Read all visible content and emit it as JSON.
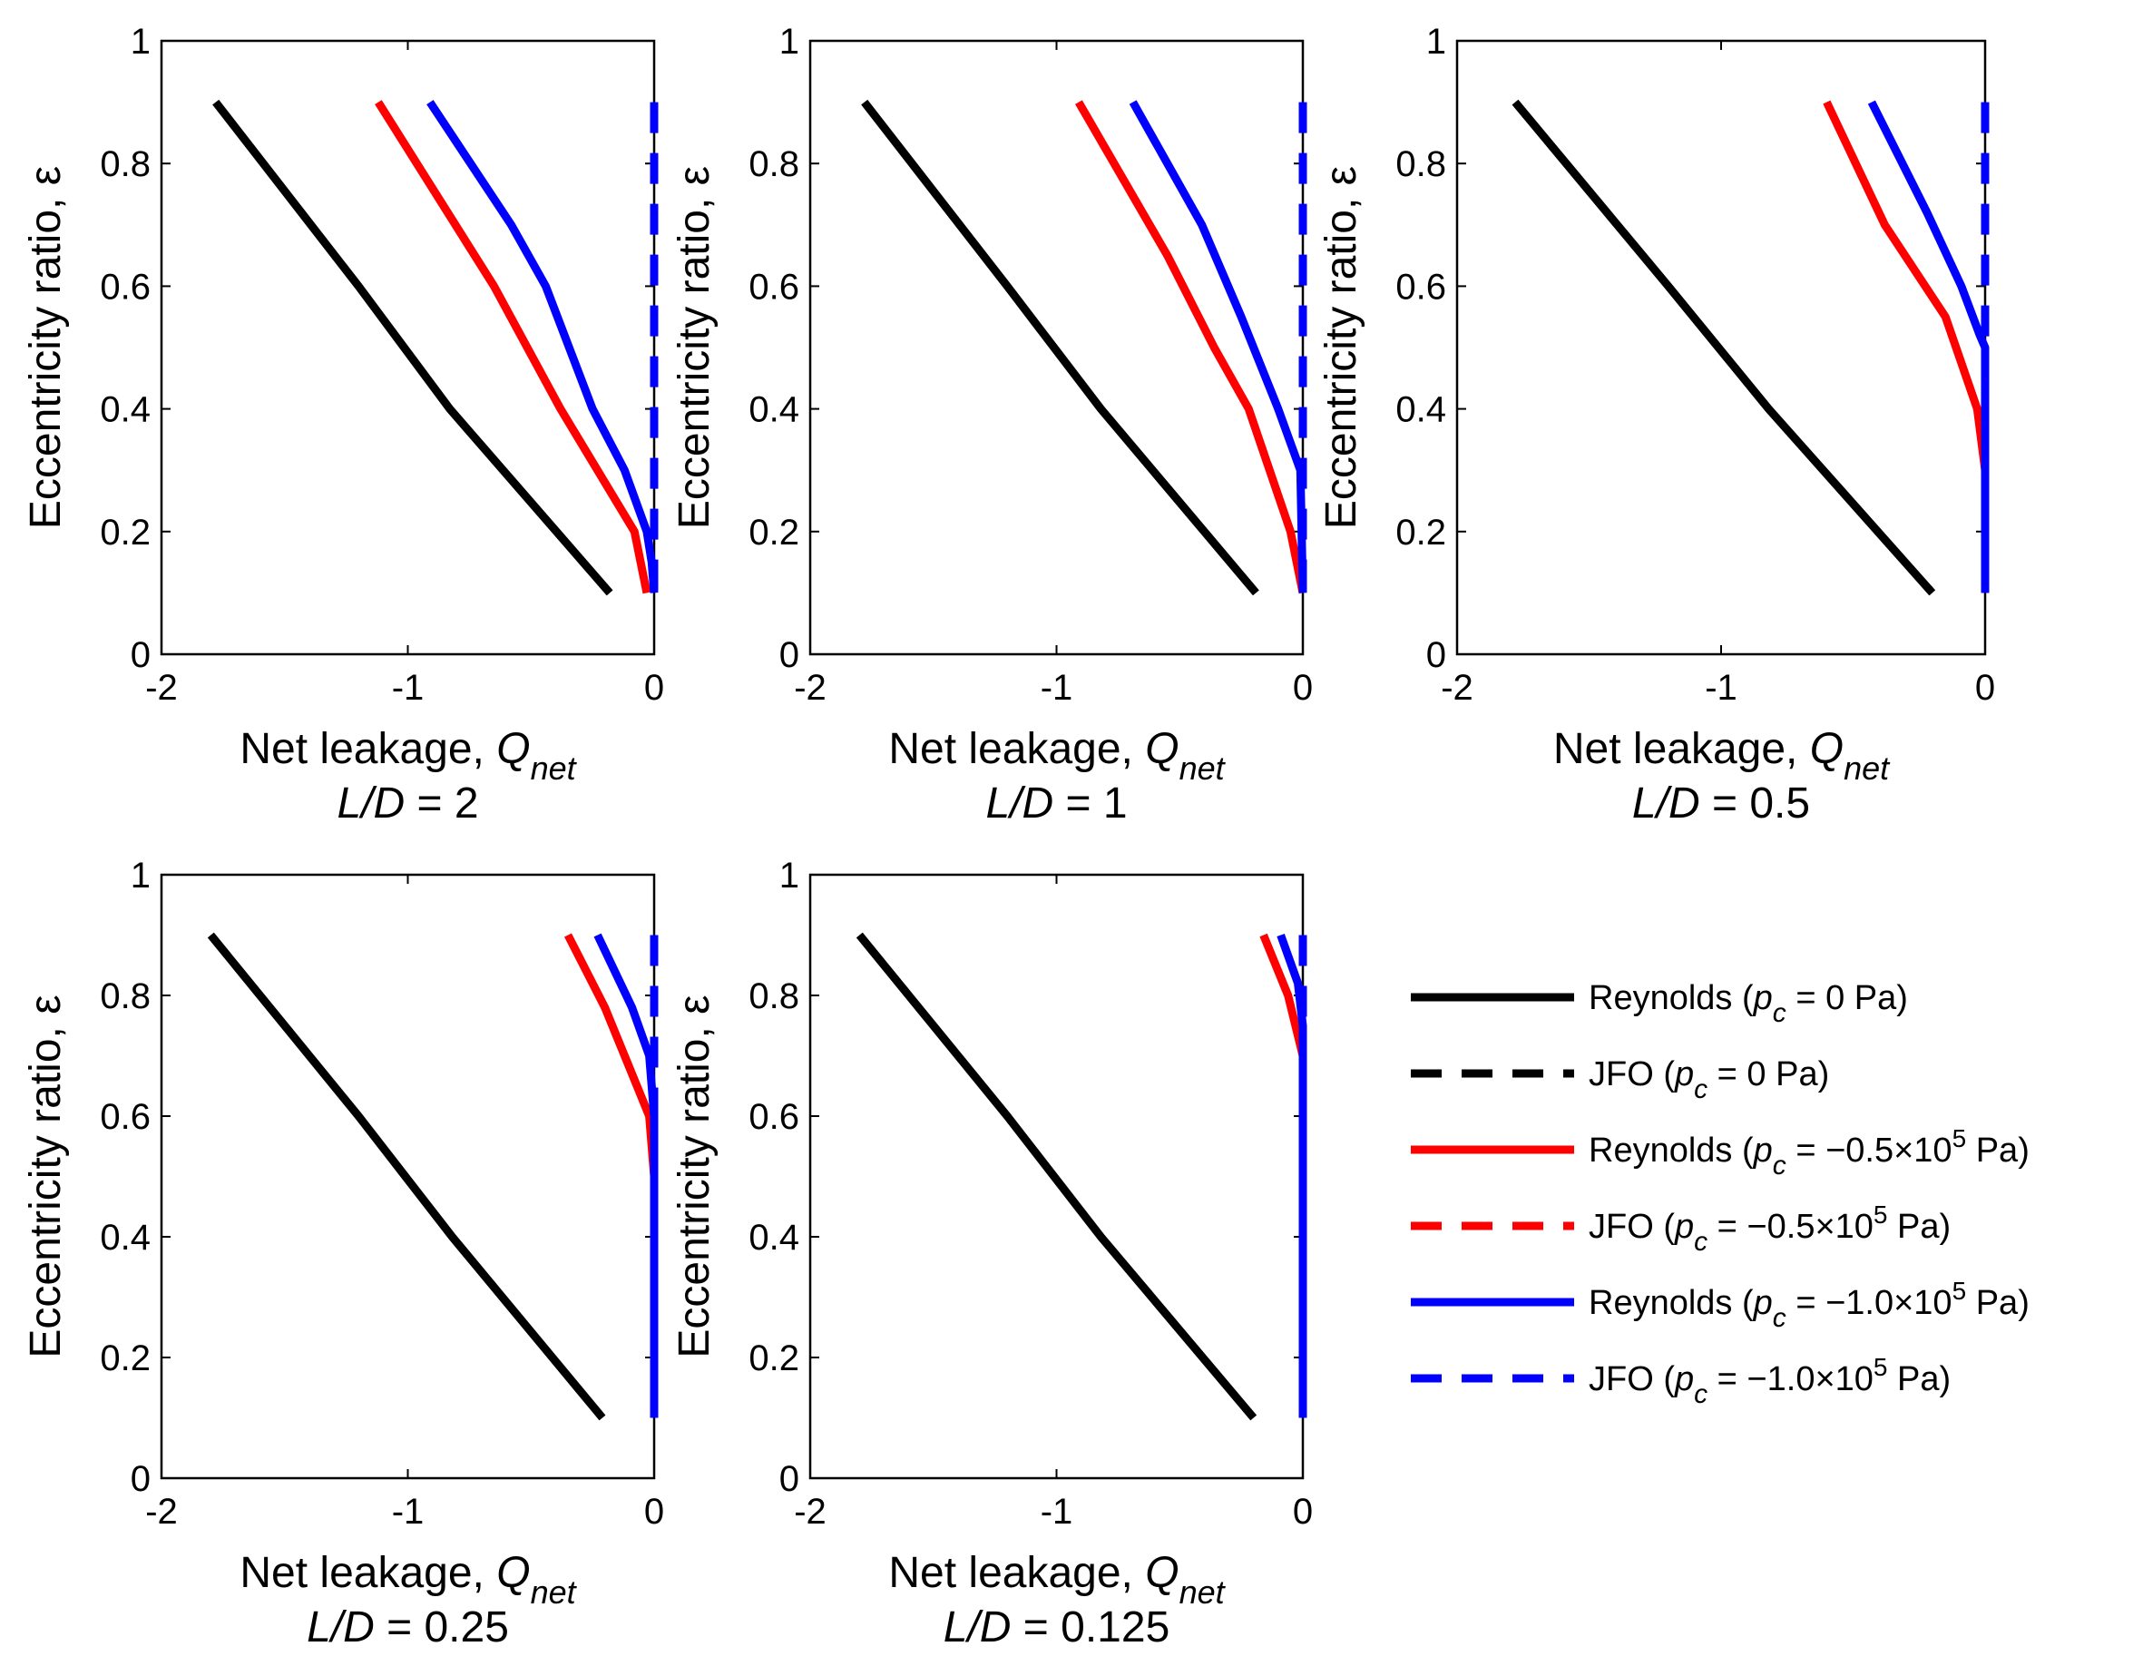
{
  "chart_data": [
    {
      "type": "line",
      "title_var": "L/D",
      "title_value": "2",
      "xlabel": "Net leakage,",
      "xlabel_var": "Q",
      "xlabel_sub": "net",
      "ylabel": "Eccentricity ratio, ε",
      "xlim": [
        -2,
        0
      ],
      "ylim": [
        0,
        1
      ],
      "xticks": [
        "-2",
        "-1",
        "0"
      ],
      "yticks": [
        "0",
        "0.2",
        "0.4",
        "0.6",
        "0.8",
        "1"
      ],
      "series": [
        {
          "name": "Reynolds (p_c = 0 Pa)",
          "color": "#000000",
          "style": "solid",
          "points": [
            [
              -1.78,
              0.9
            ],
            [
              -1.2,
              0.6
            ],
            [
              -0.83,
              0.4
            ],
            [
              -0.18,
              0.1
            ]
          ]
        },
        {
          "name": "Reynolds (p_c = −0.5×10^5 Pa)",
          "color": "#ff0000",
          "style": "solid",
          "points": [
            [
              -1.12,
              0.9
            ],
            [
              -0.65,
              0.6
            ],
            [
              -0.38,
              0.4
            ],
            [
              -0.08,
              0.2
            ],
            [
              -0.03,
              0.1
            ]
          ]
        },
        {
          "name": "Reynolds (p_c = −1.0×10^5 Pa)",
          "color": "#0000ff",
          "style": "solid",
          "points": [
            [
              -0.91,
              0.9
            ],
            [
              -0.58,
              0.7
            ],
            [
              -0.44,
              0.6
            ],
            [
              -0.25,
              0.4
            ],
            [
              -0.12,
              0.3
            ],
            [
              -0.03,
              0.2
            ],
            [
              -0.01,
              0.15
            ],
            [
              0,
              0.1
            ]
          ]
        },
        {
          "name": "JFO (p_c = −1.0×10^5 Pa)",
          "color": "#0000ff",
          "style": "dashed",
          "points": [
            [
              0,
              0.9
            ],
            [
              0,
              0.1
            ]
          ]
        }
      ]
    },
    {
      "type": "line",
      "title_var": "L/D",
      "title_value": "1",
      "xlabel": "Net leakage,",
      "xlabel_var": "Q",
      "xlabel_sub": "net",
      "ylabel": "Eccentricity ratio, ε",
      "xlim": [
        -2,
        0
      ],
      "ylim": [
        0,
        1
      ],
      "xticks": [
        "-2",
        "-1",
        "0"
      ],
      "yticks": [
        "0",
        "0.2",
        "0.4",
        "0.6",
        "0.8",
        "1"
      ],
      "series": [
        {
          "name": "Reynolds (p_c = 0 Pa)",
          "color": "#000000",
          "style": "solid",
          "points": [
            [
              -1.78,
              0.9
            ],
            [
              -1.2,
              0.6
            ],
            [
              -0.82,
              0.4
            ],
            [
              -0.19,
              0.1
            ]
          ]
        },
        {
          "name": "Reynolds (p_c = −0.5×10^5 Pa)",
          "color": "#ff0000",
          "style": "solid",
          "points": [
            [
              -0.91,
              0.9
            ],
            [
              -0.55,
              0.65
            ],
            [
              -0.36,
              0.5
            ],
            [
              -0.22,
              0.4
            ],
            [
              -0.05,
              0.2
            ],
            [
              0,
              0.1
            ]
          ]
        },
        {
          "name": "Reynolds (p_c = −1.0×10^5 Pa)",
          "color": "#0000ff",
          "style": "solid",
          "points": [
            [
              -0.69,
              0.9
            ],
            [
              -0.41,
              0.7
            ],
            [
              -0.25,
              0.55
            ],
            [
              -0.1,
              0.4
            ],
            [
              -0.01,
              0.3
            ],
            [
              0,
              0.1
            ]
          ]
        },
        {
          "name": "JFO (p_c = −1.0×10^5 Pa)",
          "color": "#0000ff",
          "style": "dashed",
          "points": [
            [
              0,
              0.9
            ],
            [
              0,
              0.1
            ]
          ]
        }
      ]
    },
    {
      "type": "line",
      "title_var": "L/D",
      "title_value": "0.5",
      "xlabel": "Net leakage,",
      "xlabel_var": "Q",
      "xlabel_sub": "net",
      "ylabel": "Eccentricity ratio, ε",
      "xlim": [
        -2,
        0
      ],
      "ylim": [
        0,
        1
      ],
      "xticks": [
        "-2",
        "-1",
        "0"
      ],
      "yticks": [
        "0",
        "0.2",
        "0.4",
        "0.6",
        "0.8",
        "1"
      ],
      "series": [
        {
          "name": "Reynolds (p_c = 0 Pa)",
          "color": "#000000",
          "style": "solid",
          "points": [
            [
              -1.78,
              0.9
            ],
            [
              -1.2,
              0.6
            ],
            [
              -0.82,
              0.4
            ],
            [
              -0.2,
              0.1
            ]
          ]
        },
        {
          "name": "Reynolds (p_c = −0.5×10^5 Pa)",
          "color": "#ff0000",
          "style": "solid",
          "points": [
            [
              -0.6,
              0.9
            ],
            [
              -0.38,
              0.7
            ],
            [
              -0.15,
              0.55
            ],
            [
              -0.03,
              0.4
            ],
            [
              0,
              0.3
            ],
            [
              0,
              0.1
            ]
          ]
        },
        {
          "name": "Reynolds (p_c = −1.0×10^5 Pa)",
          "color": "#0000ff",
          "style": "solid",
          "points": [
            [
              -0.43,
              0.9
            ],
            [
              -0.22,
              0.72
            ],
            [
              -0.09,
              0.6
            ],
            [
              -0.02,
              0.52
            ],
            [
              0,
              0.5
            ],
            [
              0,
              0.1
            ]
          ]
        },
        {
          "name": "JFO (p_c = −1.0×10^5 Pa)",
          "color": "#0000ff",
          "style": "dashed",
          "points": [
            [
              0,
              0.9
            ],
            [
              0,
              0.1
            ]
          ]
        }
      ]
    },
    {
      "type": "line",
      "title_var": "L/D",
      "title_value": "0.25",
      "xlabel": "Net leakage,",
      "xlabel_var": "Q",
      "xlabel_sub": "net",
      "ylabel": "Eccentricity ratio, ε",
      "xlim": [
        -2,
        0
      ],
      "ylim": [
        0,
        1
      ],
      "xticks": [
        "-2",
        "-1",
        "0"
      ],
      "yticks": [
        "0",
        "0.2",
        "0.4",
        "0.6",
        "0.8",
        "1"
      ],
      "series": [
        {
          "name": "Reynolds (p_c = 0 Pa)",
          "color": "#000000",
          "style": "solid",
          "points": [
            [
              -1.8,
              0.9
            ],
            [
              -1.2,
              0.6
            ],
            [
              -0.82,
              0.4
            ],
            [
              -0.21,
              0.1
            ]
          ]
        },
        {
          "name": "Reynolds (p_c = −0.5×10^5 Pa)",
          "color": "#ff0000",
          "style": "solid",
          "points": [
            [
              -0.35,
              0.9
            ],
            [
              -0.2,
              0.78
            ],
            [
              -0.08,
              0.66
            ],
            [
              -0.02,
              0.6
            ],
            [
              0,
              0.5
            ],
            [
              0,
              0.1
            ]
          ]
        },
        {
          "name": "Reynolds (p_c = −1.0×10^5 Pa)",
          "color": "#0000ff",
          "style": "solid",
          "points": [
            [
              -0.23,
              0.9
            ],
            [
              -0.09,
              0.78
            ],
            [
              -0.02,
              0.7
            ],
            [
              0,
              0.6
            ],
            [
              0,
              0.1
            ]
          ]
        },
        {
          "name": "JFO (p_c = −1.0×10^5 Pa)",
          "color": "#0000ff",
          "style": "dashed",
          "points": [
            [
              0,
              0.9
            ],
            [
              0,
              0.1
            ]
          ]
        }
      ]
    },
    {
      "type": "line",
      "title_var": "L/D",
      "title_value": "0.125",
      "xlabel": "Net leakage,",
      "xlabel_var": "Q",
      "xlabel_sub": "net",
      "ylabel": "Eccentricity ratio, ε",
      "xlim": [
        -2,
        0
      ],
      "ylim": [
        0,
        1
      ],
      "xticks": [
        "-2",
        "-1",
        "0"
      ],
      "yticks": [
        "0",
        "0.2",
        "0.4",
        "0.6",
        "0.8",
        "1"
      ],
      "series": [
        {
          "name": "Reynolds (p_c = 0 Pa)",
          "color": "#000000",
          "style": "solid",
          "points": [
            [
              -1.8,
              0.9
            ],
            [
              -1.2,
              0.6
            ],
            [
              -0.82,
              0.4
            ],
            [
              -0.2,
              0.1
            ]
          ]
        },
        {
          "name": "Reynolds (p_c = −0.5×10^5 Pa)",
          "color": "#ff0000",
          "style": "solid",
          "points": [
            [
              -0.16,
              0.9
            ],
            [
              -0.06,
              0.8
            ],
            [
              0,
              0.7
            ],
            [
              0,
              0.1
            ]
          ]
        },
        {
          "name": "Reynolds (p_c = −1.0×10^5 Pa)",
          "color": "#0000ff",
          "style": "solid",
          "points": [
            [
              -0.09,
              0.9
            ],
            [
              -0.02,
              0.82
            ],
            [
              0,
              0.75
            ],
            [
              0,
              0.1
            ]
          ]
        },
        {
          "name": "JFO (p_c = −1.0×10^5 Pa)",
          "color": "#0000ff",
          "style": "dashed",
          "points": [
            [
              0,
              0.9
            ],
            [
              0,
              0.1
            ]
          ]
        }
      ]
    }
  ],
  "legend": {
    "placement": "lower-right",
    "entries": [
      {
        "prefix": "Reynolds (",
        "var": "p",
        "sub": "c",
        "value": " = 0 Pa)",
        "exp": "",
        "tail": "",
        "color": "#000000",
        "style": "solid"
      },
      {
        "prefix": "JFO (",
        "var": "p",
        "sub": "c",
        "value": " = 0 Pa)",
        "exp": "",
        "tail": "",
        "color": "#000000",
        "style": "dashed"
      },
      {
        "prefix": "Reynolds (",
        "var": "p",
        "sub": "c",
        "value": " = −0.5×10",
        "exp": "5",
        "tail": " Pa)",
        "color": "#ff0000",
        "style": "solid"
      },
      {
        "prefix": "JFO (",
        "var": "p",
        "sub": "c",
        "value": " = −0.5×10",
        "exp": "5",
        "tail": " Pa)",
        "color": "#ff0000",
        "style": "dashed"
      },
      {
        "prefix": "Reynolds (",
        "var": "p",
        "sub": "c",
        "value": " = −1.0×10",
        "exp": "5",
        "tail": " Pa)",
        "color": "#0000ff",
        "style": "solid"
      },
      {
        "prefix": "JFO (",
        "var": "p",
        "sub": "c",
        "value": " = −1.0×10",
        "exp": "5",
        "tail": " Pa)",
        "color": "#0000ff",
        "style": "dashed"
      }
    ]
  }
}
